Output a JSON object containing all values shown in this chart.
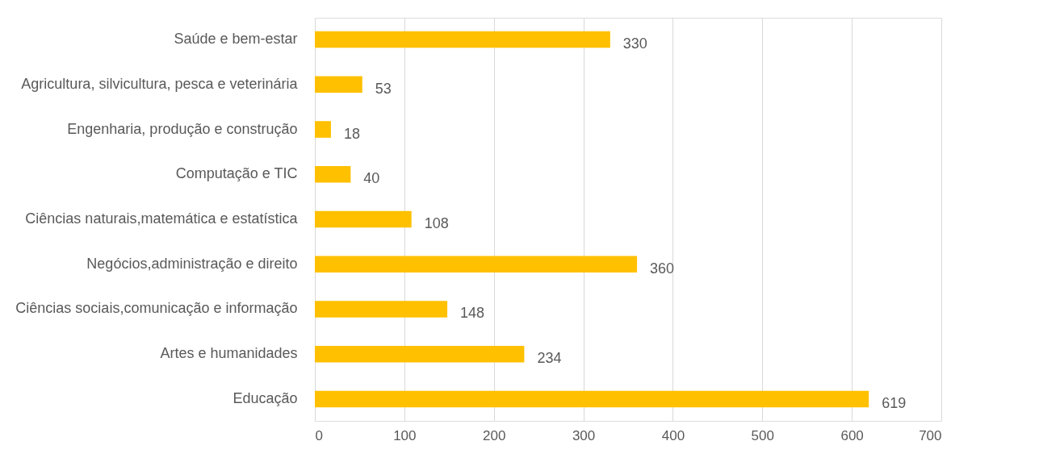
{
  "chart_data": {
    "type": "bar",
    "orientation": "horizontal",
    "categories": [
      "Saúde e bem-estar",
      "Agricultura, silvicultura, pesca e veterinária",
      "Engenharia, produção e construção",
      "Computação e TIC",
      "Ciências naturais,matemática e estatística",
      "Negócios,administração e direito",
      "Ciências sociais,comunicação e informação",
      "Artes e humanidades",
      "Educação"
    ],
    "values": [
      330,
      53,
      18,
      40,
      108,
      360,
      148,
      234,
      619
    ],
    "color": "#ffc000",
    "xlim": [
      0,
      700
    ],
    "xticks": [
      0,
      100,
      200,
      300,
      400,
      500,
      600,
      700
    ],
    "grid": "x",
    "data_labels": true
  }
}
